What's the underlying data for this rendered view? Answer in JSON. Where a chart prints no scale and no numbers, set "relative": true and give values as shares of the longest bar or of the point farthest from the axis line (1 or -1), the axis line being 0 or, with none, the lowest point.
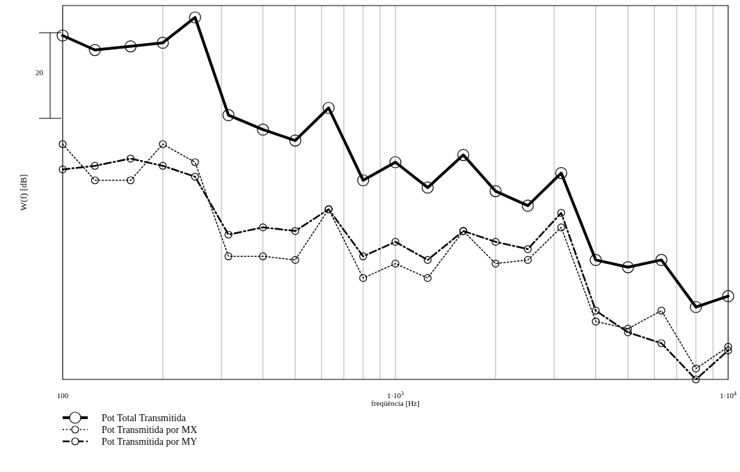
{
  "chart_data": {
    "type": "line",
    "relative": true,
    "log": "x",
    "xlabel": "freqüência [Hz]",
    "ylabel": "W(f) [dB]",
    "annotations": [
      "20"
    ],
    "x": [
      100,
      125,
      160,
      200,
      250,
      315,
      400,
      500,
      630,
      800,
      1000,
      1250,
      1600,
      2000,
      2500,
      3150,
      4000,
      5000,
      6300,
      8000,
      10000
    ],
    "xlim": [
      100,
      10000
    ],
    "xticks": [
      100,
      {
        "value": 200,
        "label": null
      },
      {
        "value": 300,
        "label": null
      },
      {
        "value": 400,
        "label": null
      },
      {
        "value": 500,
        "label": null
      },
      {
        "value": 600,
        "label": null
      },
      {
        "value": 700,
        "label": null
      },
      {
        "value": 800,
        "label": null
      },
      {
        "value": 900,
        "label": null
      },
      {
        "value": 1000,
        "label": "1·10$^{3}$"
      },
      {
        "value": 2000,
        "label": null
      },
      {
        "value": 3000,
        "label": null
      },
      {
        "value": 4000,
        "label": null
      },
      {
        "value": 5000,
        "label": null
      },
      {
        "value": 6000,
        "label": null
      },
      {
        "value": 7000,
        "label": null
      },
      {
        "value": 8000,
        "label": null
      },
      {
        "value": 9000,
        "label": null
      },
      {
        "value": 10000,
        "label": "1·10$^{4}$"
      }
    ],
    "grid": "x",
    "legend": "bottom left",
    "marker": "circle",
    "series": [
      {
        "name": "Pot Total Transmitida",
        "color": "#000000",
        "line_style": "solid",
        "values": [
          0.95,
          0.91,
          0.92,
          0.93,
          1,
          0.73,
          0.69,
          0.66,
          0.75,
          0.55,
          0.6,
          0.53,
          0.62,
          0.52,
          0.48,
          0.57,
          0.33,
          0.31,
          0.33,
          0.2,
          0.23
        ]
      },
      {
        "name": "Pot Transmitida por MX",
        "color": "#000000",
        "line_style": "dotted",
        "values": [
          0.65,
          0.55,
          0.55,
          0.65,
          0.6,
          0.34,
          0.34,
          0.33,
          0.47,
          0.28,
          0.32,
          0.28,
          0.41,
          0.32,
          0.33,
          0.42,
          0.16,
          0.14,
          0.19,
          0.03,
          0.09
        ]
      },
      {
        "name": "Pot Transmitida por MY",
        "color": "#000000",
        "line_style": "dashed",
        "values": [
          0.58,
          0.59,
          0.61,
          0.59,
          0.56,
          0.4,
          0.42,
          0.41,
          0.47,
          0.34,
          0.38,
          0.33,
          0.41,
          0.38,
          0.36,
          0.46,
          0.19,
          0.13,
          0.1,
          0,
          0.08
        ]
      }
    ]
  }
}
